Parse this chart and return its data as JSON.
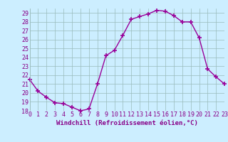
{
  "hours": [
    0,
    1,
    2,
    3,
    4,
    5,
    6,
    7,
    8,
    9,
    10,
    11,
    12,
    13,
    14,
    15,
    16,
    17,
    18,
    19,
    20,
    21,
    22,
    23
  ],
  "values": [
    21.5,
    20.2,
    19.5,
    18.9,
    18.8,
    18.4,
    18.0,
    18.2,
    21.0,
    24.2,
    24.8,
    26.5,
    28.3,
    28.6,
    28.9,
    29.3,
    29.2,
    28.7,
    28.0,
    28.0,
    26.2,
    22.7,
    21.8,
    21.0
  ],
  "line_color": "#990099",
  "marker": "+",
  "markersize": 4,
  "linewidth": 1.0,
  "bg_color": "#cceeff",
  "grid_color": "#99bbbb",
  "xlabel": "Windchill (Refroidissement éolien,°C)",
  "xlabel_color": "#880088",
  "tick_color": "#880088",
  "ylim": [
    18,
    29.5
  ],
  "yticks": [
    18,
    19,
    20,
    21,
    22,
    23,
    24,
    25,
    26,
    27,
    28,
    29
  ],
  "xlim": [
    0,
    23
  ],
  "xticks": [
    0,
    1,
    2,
    3,
    4,
    5,
    6,
    7,
    8,
    9,
    10,
    11,
    12,
    13,
    14,
    15,
    16,
    17,
    18,
    19,
    20,
    21,
    22,
    23
  ],
  "xtick_labels": [
    "0",
    "1",
    "2",
    "3",
    "4",
    "5",
    "6",
    "7",
    "8",
    "9",
    "10",
    "11",
    "12",
    "13",
    "14",
    "15",
    "16",
    "17",
    "18",
    "19",
    "20",
    "21",
    "22",
    "23"
  ],
  "ytick_labels": [
    "18",
    "19",
    "20",
    "21",
    "22",
    "23",
    "24",
    "25",
    "26",
    "27",
    "28",
    "29"
  ],
  "xlabel_fontsize": 6.5,
  "tick_fontsize": 6.0
}
